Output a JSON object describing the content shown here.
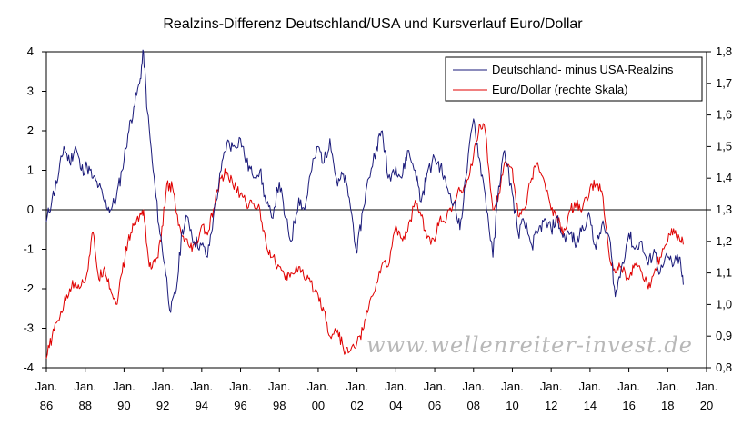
{
  "chart_data": {
    "type": "line",
    "title": "Realzins-Differenz Deutschland/USA und Kursverlauf Euro/Dollar",
    "left_axis": {
      "min": -4,
      "max": 4,
      "ticks": [
        "4",
        "3",
        "2",
        "1",
        "0",
        "-1",
        "-2",
        "-3",
        "-4"
      ],
      "tick_values": [
        4,
        3,
        2,
        1,
        0,
        -1,
        -2,
        -3,
        -4
      ]
    },
    "right_axis": {
      "min": 0.8,
      "max": 1.8,
      "ticks": [
        "1,8",
        "1,7",
        "1,6",
        "1,5",
        "1,4",
        "1,3",
        "1,2",
        "1,1",
        "1,0",
        "0,9",
        "0,8"
      ],
      "tick_values": [
        1.8,
        1.7,
        1.6,
        1.5,
        1.4,
        1.3,
        1.2,
        1.1,
        1.0,
        0.9,
        0.8
      ]
    },
    "x_axis": {
      "min": 1986,
      "max": 2020,
      "ticks": [
        {
          "value": 1986,
          "line1": "Jan.",
          "line2": "86"
        },
        {
          "value": 1988,
          "line1": "Jan.",
          "line2": "88"
        },
        {
          "value": 1990,
          "line1": "Jan.",
          "line2": "90"
        },
        {
          "value": 1992,
          "line1": "Jan.",
          "line2": "92"
        },
        {
          "value": 1994,
          "line1": "Jan.",
          "line2": "94"
        },
        {
          "value": 1996,
          "line1": "Jan.",
          "line2": "96"
        },
        {
          "value": 1998,
          "line1": "Jan.",
          "line2": "98"
        },
        {
          "value": 2000,
          "line1": "Jan.",
          "line2": "00"
        },
        {
          "value": 2002,
          "line1": "Jan.",
          "line2": "02"
        },
        {
          "value": 2004,
          "line1": "Jan.",
          "line2": "04"
        },
        {
          "value": 2006,
          "line1": "Jan.",
          "line2": "06"
        },
        {
          "value": 2008,
          "line1": "Jan.",
          "line2": "08"
        },
        {
          "value": 2010,
          "line1": "Jan.",
          "line2": "10"
        },
        {
          "value": 2012,
          "line1": "Jan.",
          "line2": "12"
        },
        {
          "value": 2014,
          "line1": "Jan.",
          "line2": "14"
        },
        {
          "value": 2016,
          "line1": "Jan.",
          "line2": "16"
        },
        {
          "value": 2018,
          "line1": "Jan.",
          "line2": "18"
        },
        {
          "value": 2020,
          "line1": "Jan.",
          "line2": "20"
        }
      ]
    },
    "series": [
      {
        "name": "Deutschland- minus USA-Realzins",
        "axis": "left",
        "color": "#1a1a7a",
        "x": [
          1986.0,
          1986.3,
          1986.6,
          1986.9,
          1987.2,
          1987.5,
          1987.8,
          1988.1,
          1988.4,
          1988.7,
          1989.0,
          1989.3,
          1989.6,
          1989.9,
          1990.2,
          1990.5,
          1990.8,
          1991.0,
          1991.2,
          1991.5,
          1991.8,
          1992.1,
          1992.4,
          1992.7,
          1993.0,
          1993.3,
          1993.6,
          1994.0,
          1994.3,
          1994.6,
          1995.0,
          1995.3,
          1995.6,
          1996.0,
          1996.3,
          1996.6,
          1997.0,
          1997.3,
          1997.6,
          1998.0,
          1998.3,
          1998.6,
          1999.0,
          1999.3,
          1999.6,
          2000.0,
          2000.3,
          2000.6,
          2001.0,
          2001.3,
          2001.6,
          2002.0,
          2002.3,
          2002.6,
          2003.0,
          2003.3,
          2003.6,
          2004.0,
          2004.3,
          2004.6,
          2005.0,
          2005.3,
          2005.6,
          2006.0,
          2006.3,
          2006.6,
          2007.0,
          2007.3,
          2007.6,
          2008.0,
          2008.3,
          2008.6,
          2009.0,
          2009.3,
          2009.6,
          2010.0,
          2010.3,
          2010.6,
          2011.0,
          2011.3,
          2011.6,
          2012.0,
          2012.3,
          2012.6,
          2013.0,
          2013.3,
          2013.6,
          2014.0,
          2014.3,
          2014.6,
          2015.0,
          2015.3,
          2015.6,
          2016.0,
          2016.3,
          2016.6,
          2017.0,
          2017.3,
          2017.6,
          2018.0,
          2018.3,
          2018.6,
          2018.8
        ],
        "y": [
          -0.3,
          0.3,
          0.8,
          1.6,
          1.2,
          1.6,
          1.0,
          1.1,
          0.8,
          0.6,
          0.2,
          0.0,
          0.3,
          1.0,
          1.9,
          2.6,
          3.2,
          4.0,
          2.5,
          1.0,
          -0.4,
          -1.4,
          -2.6,
          -2.0,
          -0.5,
          -0.2,
          -0.8,
          -0.9,
          -1.2,
          -0.2,
          1.0,
          1.7,
          1.6,
          1.8,
          1.2,
          0.9,
          1.0,
          0.2,
          -0.2,
          0.7,
          -0.2,
          -0.8,
          0.3,
          0.0,
          0.9,
          1.6,
          1.2,
          1.8,
          0.6,
          0.9,
          0.3,
          -1.1,
          0.0,
          0.8,
          1.6,
          2.0,
          0.8,
          1.1,
          0.8,
          1.5,
          1.0,
          0.2,
          0.9,
          1.3,
          1.1,
          0.6,
          0.2,
          -0.5,
          0.8,
          2.3,
          1.3,
          0.4,
          -1.2,
          0.6,
          1.5,
          0.4,
          -0.6,
          -0.3,
          -0.9,
          -0.6,
          -0.3,
          -0.5,
          -0.2,
          -0.7,
          -0.6,
          -0.9,
          -0.4,
          -0.2,
          -1.0,
          -0.4,
          -0.7,
          -2.2,
          -1.5,
          -0.6,
          -1.0,
          -0.8,
          -1.4,
          -1.0,
          -1.6,
          -1.2,
          -1.4,
          -1.2,
          -1.9
        ]
      },
      {
        "name": "Euro/Dollar (rechte Skala)",
        "axis": "right",
        "color": "#e00000",
        "x": [
          1986.0,
          1986.3,
          1986.6,
          1986.9,
          1987.2,
          1987.5,
          1987.8,
          1988.1,
          1988.4,
          1988.7,
          1989.0,
          1989.3,
          1989.6,
          1989.9,
          1990.2,
          1990.5,
          1990.8,
          1991.0,
          1991.3,
          1991.6,
          1991.9,
          1992.2,
          1992.5,
          1992.8,
          1993.1,
          1993.4,
          1993.7,
          1994.0,
          1994.3,
          1994.6,
          1995.0,
          1995.3,
          1995.6,
          1996.0,
          1996.3,
          1996.6,
          1997.0,
          1997.3,
          1997.6,
          1998.0,
          1998.3,
          1998.6,
          1999.0,
          1999.3,
          1999.6,
          2000.0,
          2000.3,
          2000.6,
          2001.0,
          2001.3,
          2001.6,
          2002.0,
          2002.3,
          2002.6,
          2003.0,
          2003.3,
          2003.6,
          2004.0,
          2004.3,
          2004.6,
          2005.0,
          2005.3,
          2005.6,
          2006.0,
          2006.3,
          2006.6,
          2007.0,
          2007.3,
          2007.6,
          2008.0,
          2008.3,
          2008.6,
          2009.0,
          2009.3,
          2009.6,
          2010.0,
          2010.3,
          2010.6,
          2011.0,
          2011.3,
          2011.6,
          2012.0,
          2012.3,
          2012.6,
          2013.0,
          2013.3,
          2013.6,
          2014.0,
          2014.3,
          2014.6,
          2015.0,
          2015.3,
          2015.6,
          2016.0,
          2016.3,
          2016.6,
          2017.0,
          2017.3,
          2017.6,
          2018.0,
          2018.3,
          2018.6,
          2018.8
        ],
        "y": [
          0.83,
          0.9,
          0.95,
          1.0,
          1.05,
          1.07,
          1.06,
          1.1,
          1.23,
          1.08,
          1.12,
          1.05,
          1.0,
          1.1,
          1.2,
          1.25,
          1.28,
          1.3,
          1.12,
          1.13,
          1.2,
          1.38,
          1.37,
          1.25,
          1.2,
          1.18,
          1.18,
          1.25,
          1.22,
          1.3,
          1.4,
          1.42,
          1.38,
          1.35,
          1.32,
          1.32,
          1.3,
          1.2,
          1.15,
          1.12,
          1.08,
          1.1,
          1.12,
          1.08,
          1.07,
          1.03,
          0.98,
          0.9,
          0.92,
          0.86,
          0.85,
          0.88,
          0.92,
          0.99,
          1.07,
          1.13,
          1.12,
          1.25,
          1.21,
          1.23,
          1.33,
          1.28,
          1.21,
          1.2,
          1.28,
          1.27,
          1.32,
          1.36,
          1.37,
          1.47,
          1.57,
          1.55,
          1.3,
          1.35,
          1.45,
          1.43,
          1.28,
          1.3,
          1.4,
          1.45,
          1.4,
          1.3,
          1.28,
          1.22,
          1.3,
          1.32,
          1.3,
          1.37,
          1.38,
          1.36,
          1.15,
          1.1,
          1.12,
          1.08,
          1.13,
          1.11,
          1.05,
          1.1,
          1.15,
          1.2,
          1.24,
          1.21,
          1.19
        ]
      }
    ],
    "zero_line": 0,
    "legend_placement": "top-right",
    "watermark": "www.wellenreiter-invest.de"
  }
}
